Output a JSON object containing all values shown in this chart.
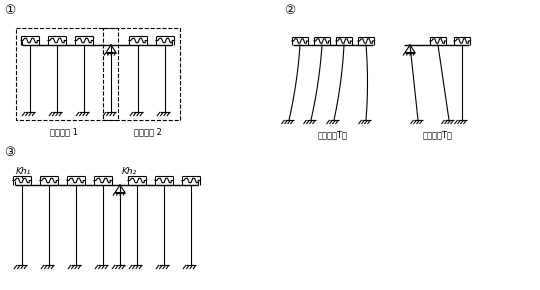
{
  "background": "#ffffff",
  "line_color": "#000000",
  "fig_width": 5.4,
  "fig_height": 2.9,
  "dpi": 100,
  "vibration_unit1": "振動単位 1",
  "vibration_unit2": "振動単位 2",
  "period1": "固有周期T１",
  "period2": "固有周期T２",
  "kh1_label": "Kh₁",
  "kh2_label": "Kh₂",
  "circle1": "①",
  "circle2": "②",
  "circle3": "③"
}
